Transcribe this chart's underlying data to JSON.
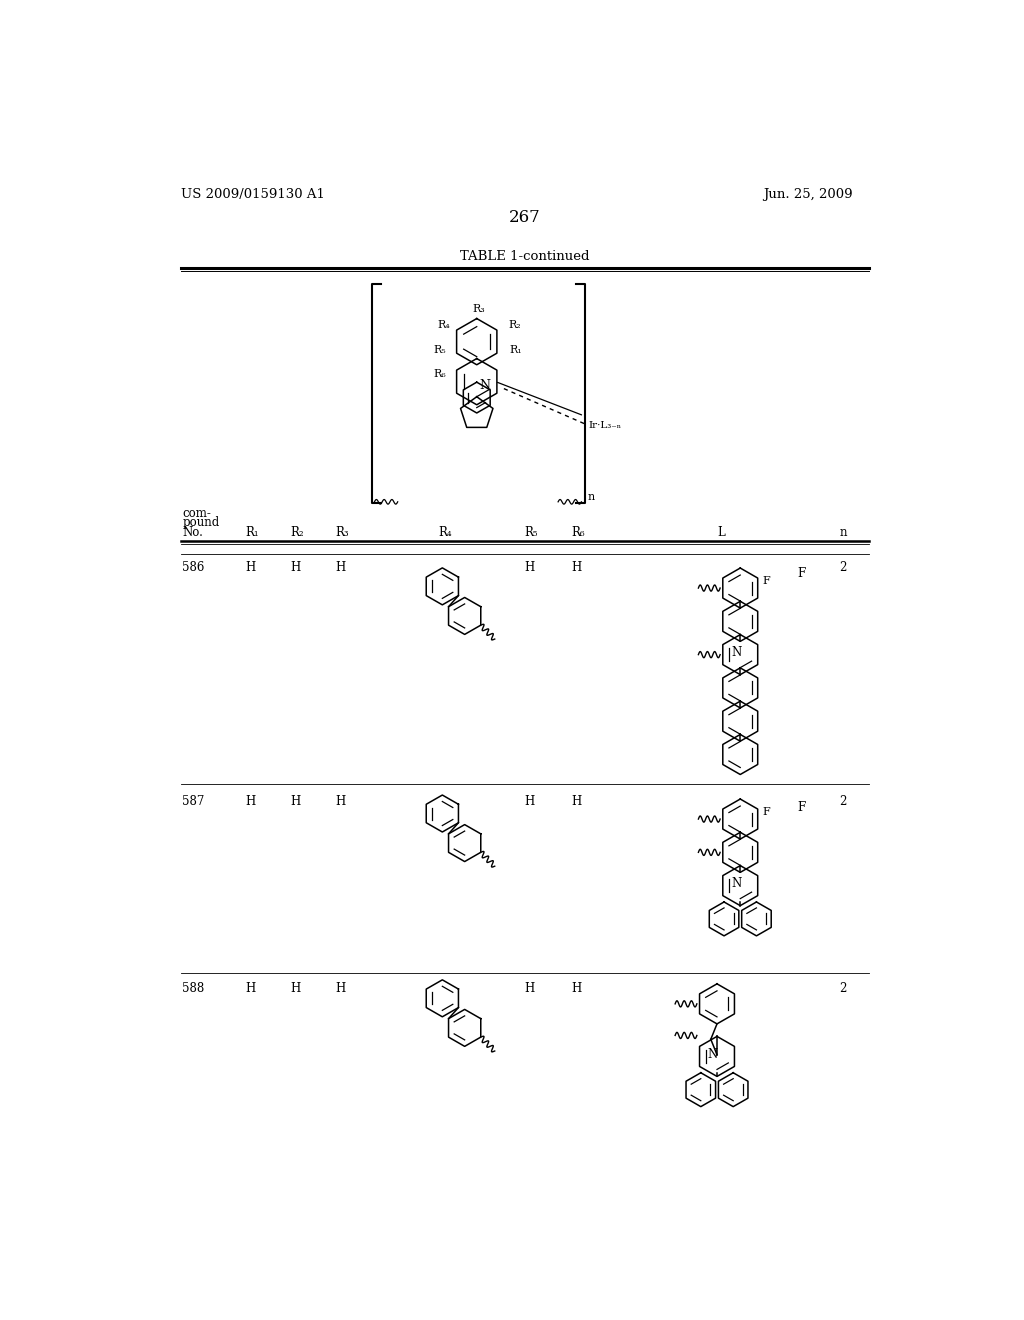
{
  "background_color": "#ffffff",
  "page_number": "267",
  "left_header": "US 2009/0159130 A1",
  "right_header": "Jun. 25, 2009",
  "table_title": "TABLE 1-continued",
  "line_color": "#000000",
  "text_color": "#000000"
}
